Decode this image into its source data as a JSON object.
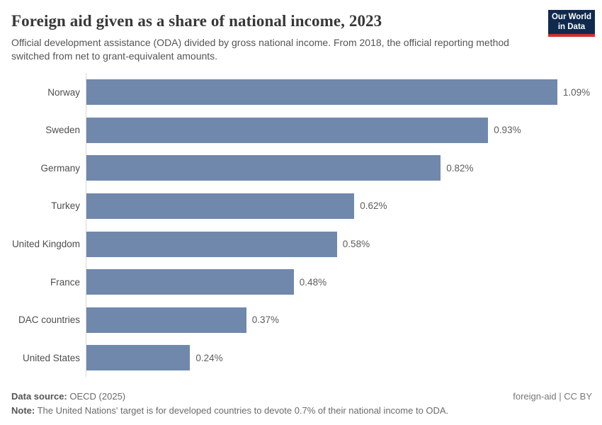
{
  "header": {
    "title": "Foreign aid given as a share of national income, 2023",
    "subtitle": "Official development assistance (ODA) divided by gross national income. From 2018, the official reporting method switched from net to grant-equivalent amounts.",
    "logo_line1": "Our World",
    "logo_line2": "in Data"
  },
  "chart_data": {
    "type": "bar",
    "orientation": "horizontal",
    "title": "Foreign aid given as a share of national income, 2023",
    "categories": [
      "Norway",
      "Sweden",
      "Germany",
      "Turkey",
      "United Kingdom",
      "France",
      "DAC countries",
      "United States"
    ],
    "values": [
      1.09,
      0.93,
      0.82,
      0.62,
      0.58,
      0.48,
      0.37,
      0.24
    ],
    "value_labels": [
      "1.09%",
      "0.93%",
      "0.82%",
      "0.62%",
      "0.58%",
      "0.48%",
      "0.37%",
      "0.24%"
    ],
    "unit": "%",
    "xlim": [
      0,
      1.09
    ],
    "grid": false,
    "legend": "none",
    "xlabel": "",
    "ylabel": ""
  },
  "colors": {
    "bar": "#6f88ac",
    "axis_line": "#d9d9d9",
    "logo_background": "#102a4e",
    "logo_accent_red": "#cf302c",
    "title_text": "#383838",
    "subtitle_text": "#555555"
  },
  "footer": {
    "data_source_label": "Data source:",
    "data_source_value": "OECD (2025)",
    "license": "foreign-aid | CC BY",
    "note_label": "Note:",
    "note_text": "The United Nations' target is for developed countries to devote 0.7% of their national income to ODA."
  }
}
